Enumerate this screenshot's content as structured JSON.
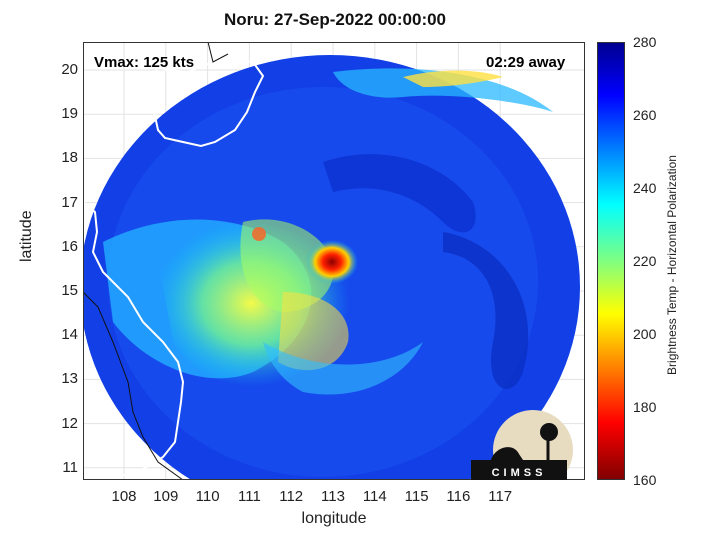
{
  "title": "Noru: 27-Sep-2022 00:00:00",
  "vmax_label": "Vmax: 125 kts",
  "time_label": "02:29 away",
  "x_axis_label": "longitude",
  "y_axis_label": "latitude",
  "x_ticks": [
    "108",
    "109",
    "110",
    "111",
    "112",
    "113",
    "114",
    "115",
    "116",
    "117"
  ],
  "y_ticks": [
    "20",
    "19",
    "18",
    "17",
    "16",
    "15",
    "14",
    "13",
    "12",
    "11"
  ],
  "colorbar": {
    "label": "Brightness Temp - Horizontal Polarization",
    "ticks": [
      "280",
      "260",
      "240",
      "220",
      "200",
      "180",
      "160"
    ],
    "colormap": "jet",
    "range": [
      160,
      280
    ]
  },
  "logo_text": "CIMSS",
  "colors": {
    "low_temp": "#800000",
    "high_temp": "#00008f",
    "coast": "#ffffff"
  }
}
